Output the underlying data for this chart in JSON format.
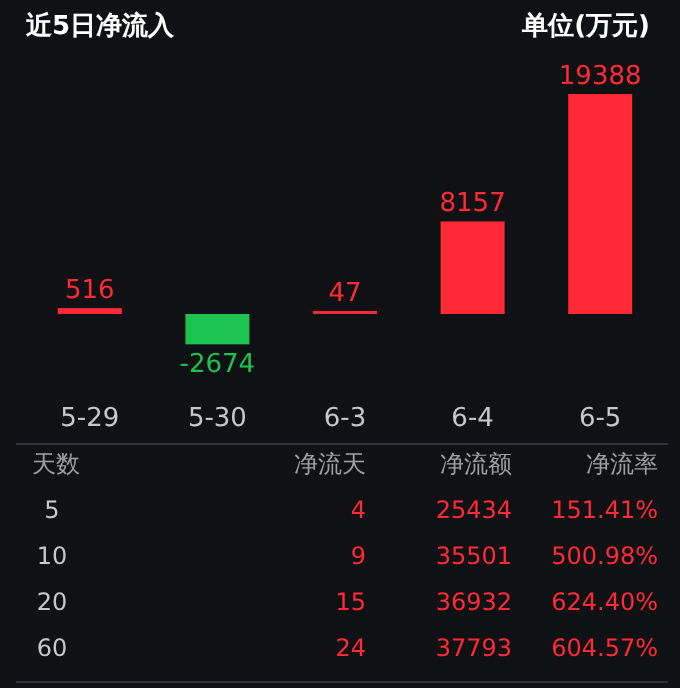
{
  "chart_data": [
    {
      "type": "bar",
      "title": "近5日净流入",
      "annotations": [
        "单位(万元)"
      ],
      "categories": [
        "5-29",
        "5-30",
        "6-3",
        "6-4",
        "6-5"
      ],
      "values": [
        516,
        -2674,
        47,
        8157,
        19388
      ],
      "colors": [
        "#ff2a35",
        "#1dc34f",
        "#ff2a35",
        "#ff2a35",
        "#ff2a35"
      ],
      "data_labels": true
    },
    {
      "type": "other",
      "categories": [
        "天数",
        "净流天",
        "净流额",
        "净流率"
      ],
      "cell_labels": [
        [
          "5",
          "4",
          "25434",
          "151.41%"
        ],
        [
          "10",
          "9",
          "35501",
          "500.98%"
        ],
        [
          "20",
          "15",
          "36932",
          "624.40%"
        ],
        [
          "60",
          "24",
          "37793",
          "604.57%"
        ]
      ]
    }
  ]
}
